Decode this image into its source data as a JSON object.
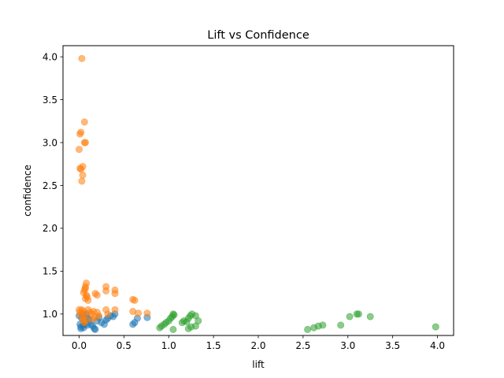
{
  "chart_data": {
    "type": "scatter",
    "title": "Lift vs Confidence",
    "xlabel": "lift",
    "ylabel": "confidence",
    "xlim": [
      -0.18,
      4.18
    ],
    "ylim": [
      0.75,
      4.13
    ],
    "xticks": [
      0.0,
      0.5,
      1.0,
      1.5,
      2.0,
      2.5,
      3.0,
      3.5,
      4.0
    ],
    "xtick_labels": [
      "0.0",
      "0.5",
      "1.0",
      "1.5",
      "2.0",
      "2.5",
      "3.0",
      "3.5",
      "4.0"
    ],
    "yticks": [
      1.0,
      1.5,
      2.0,
      2.5,
      3.0,
      3.5,
      4.0
    ],
    "ytick_labels": [
      "1.0",
      "1.5",
      "2.0",
      "2.5",
      "3.0",
      "3.5",
      "4.0"
    ],
    "grid": false,
    "legend": "none",
    "series": [
      {
        "color": "#1f77b4",
        "points": [
          [
            0.0,
            0.98
          ],
          [
            0.01,
            0.88
          ],
          [
            0.02,
            0.85
          ],
          [
            0.02,
            0.83
          ],
          [
            0.03,
            0.95
          ],
          [
            0.04,
            1.0
          ],
          [
            0.05,
            0.87
          ],
          [
            0.05,
            0.84
          ],
          [
            0.06,
            0.92
          ],
          [
            0.07,
            0.89
          ],
          [
            0.08,
            1.0
          ],
          [
            0.09,
            0.87
          ],
          [
            0.1,
            0.95
          ],
          [
            0.12,
            0.93
          ],
          [
            0.13,
            0.88
          ],
          [
            0.15,
            0.86
          ],
          [
            0.17,
            0.83
          ],
          [
            0.18,
            0.82
          ],
          [
            0.2,
            0.92
          ],
          [
            0.22,
            0.96
          ],
          [
            0.25,
            0.9
          ],
          [
            0.28,
            0.88
          ],
          [
            0.3,
            0.93
          ],
          [
            0.32,
            0.95
          ],
          [
            0.35,
            0.98
          ],
          [
            0.38,
            0.97
          ],
          [
            0.4,
            1.0
          ],
          [
            0.6,
            0.88
          ],
          [
            0.62,
            0.9
          ],
          [
            0.65,
            0.95
          ],
          [
            0.76,
            0.96
          ]
        ]
      },
      {
        "color": "#ff7f0e",
        "points": [
          [
            0.03,
            3.98
          ],
          [
            0.06,
            3.24
          ],
          [
            0.02,
            3.12
          ],
          [
            0.01,
            3.1
          ],
          [
            0.07,
            3.0
          ],
          [
            0.06,
            3.0
          ],
          [
            0.0,
            2.92
          ],
          [
            0.04,
            2.72
          ],
          [
            0.01,
            2.7
          ],
          [
            0.02,
            2.69
          ],
          [
            0.04,
            2.62
          ],
          [
            0.03,
            2.55
          ],
          [
            0.08,
            1.36
          ],
          [
            0.07,
            1.32
          ],
          [
            0.07,
            1.3
          ],
          [
            0.06,
            1.28
          ],
          [
            0.05,
            1.25
          ],
          [
            0.08,
            1.22
          ],
          [
            0.09,
            1.2
          ],
          [
            0.07,
            1.18
          ],
          [
            0.1,
            1.16
          ],
          [
            0.18,
            1.24
          ],
          [
            0.2,
            1.22
          ],
          [
            0.3,
            1.32
          ],
          [
            0.3,
            1.27
          ],
          [
            0.4,
            1.28
          ],
          [
            0.4,
            1.24
          ],
          [
            0.6,
            1.17
          ],
          [
            0.62,
            1.16
          ],
          [
            0.0,
            1.05
          ],
          [
            0.01,
            1.02
          ],
          [
            0.03,
            1.05
          ],
          [
            0.05,
            1.03
          ],
          [
            0.06,
            1.0
          ],
          [
            0.1,
            1.05
          ],
          [
            0.12,
            1.02
          ],
          [
            0.14,
            1.0
          ],
          [
            0.16,
            1.03
          ],
          [
            0.2,
            1.02
          ],
          [
            0.22,
            0.98
          ],
          [
            0.3,
            1.05
          ],
          [
            0.32,
            1.0
          ],
          [
            0.4,
            1.05
          ],
          [
            0.6,
            1.03
          ],
          [
            0.66,
            1.01
          ],
          [
            0.76,
            1.01
          ],
          [
            0.02,
            0.98
          ],
          [
            0.04,
            0.95
          ],
          [
            0.05,
            0.92
          ],
          [
            0.06,
            0.9
          ],
          [
            0.08,
            0.93
          ],
          [
            0.15,
            0.94
          ],
          [
            0.18,
            0.96
          ]
        ]
      },
      {
        "color": "#2ca02c",
        "points": [
          [
            0.9,
            0.84
          ],
          [
            0.92,
            0.86
          ],
          [
            0.95,
            0.88
          ],
          [
            0.97,
            0.9
          ],
          [
            1.0,
            0.92
          ],
          [
            1.02,
            0.95
          ],
          [
            1.04,
            0.97
          ],
          [
            1.05,
            1.0
          ],
          [
            1.06,
            0.99
          ],
          [
            1.05,
            0.82
          ],
          [
            1.15,
            0.9
          ],
          [
            1.17,
            0.92
          ],
          [
            1.2,
            0.91
          ],
          [
            1.22,
            0.95
          ],
          [
            1.24,
            0.98
          ],
          [
            1.26,
            1.0
          ],
          [
            1.22,
            0.83
          ],
          [
            1.25,
            0.85
          ],
          [
            1.3,
            0.86
          ],
          [
            1.33,
            0.92
          ],
          [
            1.3,
            0.98
          ],
          [
            2.55,
            0.82
          ],
          [
            2.62,
            0.84
          ],
          [
            2.67,
            0.86
          ],
          [
            2.72,
            0.87
          ],
          [
            2.92,
            0.87
          ],
          [
            3.02,
            0.97
          ],
          [
            3.1,
            1.0
          ],
          [
            3.12,
            1.0
          ],
          [
            3.25,
            0.97
          ],
          [
            3.98,
            0.85
          ]
        ]
      }
    ]
  }
}
